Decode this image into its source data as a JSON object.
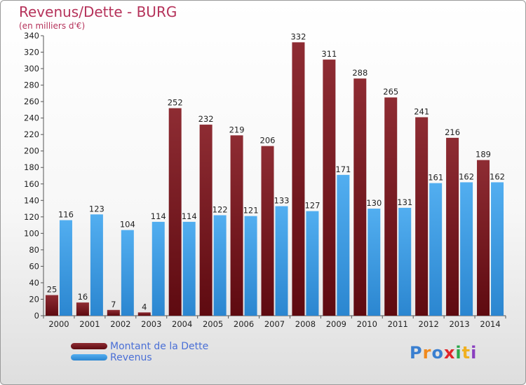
{
  "header": {
    "title": "Revenus/Dette - BURG",
    "subtitle": "(en milliers d'€)"
  },
  "colors": {
    "dette": "#7a1d24",
    "revenus": "#3d9be3",
    "title": "#b5325a",
    "legend_text": "#4a6fd6"
  },
  "legend": {
    "items": [
      {
        "label": "Montant de la Dette",
        "color": "#6b0f14"
      },
      {
        "label": "Revenus",
        "color": "#3d9be3"
      }
    ]
  },
  "logo": {
    "text": "Proxiti",
    "letter_colors": [
      "#3a7fd0",
      "#f08a1e",
      "#3a7fd0",
      "#e0252a",
      "#2aa84a",
      "#f0b020",
      "#8a3fbf"
    ]
  },
  "chart_data": {
    "type": "bar",
    "title": "Revenus/Dette - BURG",
    "subtitle": "(en milliers d'€)",
    "xlabel": "",
    "ylabel": "",
    "categories": [
      "2000",
      "2001",
      "2002",
      "2003",
      "2004",
      "2005",
      "2006",
      "2007",
      "2008",
      "2009",
      "2010",
      "2011",
      "2012",
      "2013",
      "2014"
    ],
    "series": [
      {
        "name": "Montant de la Dette",
        "values": [
          25,
          16,
          7,
          4,
          252,
          232,
          219,
          206,
          332,
          311,
          288,
          265,
          241,
          216,
          189
        ]
      },
      {
        "name": "Revenus",
        "values": [
          116,
          123,
          104,
          114,
          114,
          122,
          121,
          133,
          127,
          171,
          130,
          131,
          161,
          162,
          162
        ]
      }
    ],
    "ylim": [
      0,
      340
    ],
    "yticks": [
      0,
      20,
      40,
      60,
      80,
      100,
      120,
      140,
      160,
      180,
      200,
      220,
      240,
      260,
      280,
      300,
      320,
      340
    ],
    "grid": false,
    "legend_position": "bottom-left",
    "data_labels": true
  }
}
